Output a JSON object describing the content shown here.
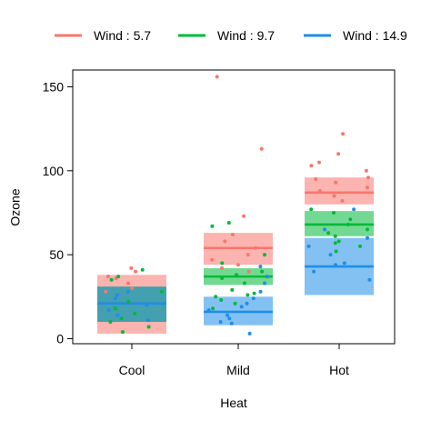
{
  "chart_data": {
    "type": "visreg-overlay",
    "xlabel": "Heat",
    "ylabel": "Ozone",
    "categories": [
      "Cool",
      "Mild",
      "Hot"
    ],
    "ylim": [
      -3,
      160
    ],
    "yticks": [
      0,
      50,
      100,
      150
    ],
    "grid": false,
    "legend_position": "top",
    "series": [
      {
        "name": "Wind : 5.7",
        "color": "#F8766D",
        "fit": [
          21,
          54,
          87
        ],
        "lower": [
          3,
          44,
          80
        ],
        "upper": [
          38,
          63,
          96
        ],
        "points": {
          "Cool": [
            42,
            40,
            37,
            36,
            33,
            30,
            28
          ],
          "Mild": [
            113,
            73,
            62,
            58,
            54,
            50,
            47,
            44,
            42,
            40,
            156
          ],
          "Hot": [
            122,
            110,
            105,
            103,
            100,
            96,
            95,
            93,
            90,
            88,
            85,
            82
          ]
        }
      },
      {
        "name": "Wind : 9.7",
        "color": "#00BA38",
        "fit": [
          21,
          37,
          68
        ],
        "lower": [
          10,
          32,
          61
        ],
        "upper": [
          31,
          42,
          76
        ],
        "points": {
          "Cool": [
            41,
            37,
            35,
            28,
            22,
            18,
            15,
            12,
            10,
            7,
            4
          ],
          "Mild": [
            69,
            67,
            50,
            45,
            40,
            38,
            36,
            33,
            29,
            27,
            26,
            25,
            23,
            21,
            18
          ],
          "Hot": [
            77,
            75,
            71,
            68,
            65,
            63,
            61,
            58,
            57,
            55,
            52
          ]
        }
      },
      {
        "name": "Wind : 14.9",
        "color": "#1E8EE8",
        "fit": [
          21,
          16,
          43
        ],
        "lower": [
          10,
          8,
          26
        ],
        "upper": [
          31,
          25,
          60
        ],
        "points": {
          "Cool": [
            28,
            26,
            24,
            20,
            17,
            14,
            11
          ],
          "Mild": [
            43,
            37,
            33,
            28,
            24,
            21,
            19,
            17,
            14,
            12,
            10,
            9,
            3
          ],
          "Hot": [
            77,
            65,
            60,
            55,
            50,
            45,
            44,
            40,
            35
          ]
        }
      }
    ]
  }
}
